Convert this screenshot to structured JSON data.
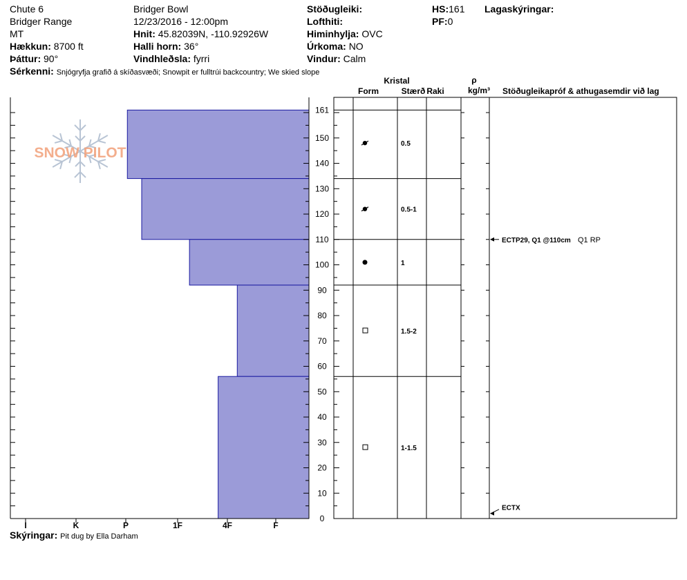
{
  "header": {
    "col1": {
      "pit_name": "Chute 6",
      "range": "Bridger Range",
      "state": "MT",
      "elevation_label": "Hækkun:",
      "elevation": "8700 ft",
      "aspect_label": "Þáttur:",
      "aspect": "90°"
    },
    "col2": {
      "area": "Bridger Bowl",
      "datetime": "12/23/2016 - 12:00pm",
      "coords_label": "Hnit:",
      "coords": "45.82039N, -110.92926W",
      "slope_label": "Halli horn:",
      "slope": "36°",
      "wind_loading_label": "Vindhleðsla:",
      "wind_loading": "fyrri"
    },
    "col3": {
      "stability_label": "Stöðugleiki:",
      "stability": "",
      "air_temp_label": "Lofthiti:",
      "air_temp": "",
      "sky_label": "Himinhylja:",
      "sky": "OVC",
      "precip_label": "Úrkoma:",
      "precip": "NO",
      "wind_label": "Vindur:",
      "wind": "Calm"
    },
    "col4": {
      "hs_label": "HS:",
      "hs": "161",
      "pf_label": "PF:",
      "pf": "0"
    },
    "layer_notes_label": "Lagaskýringar:",
    "features_label": "Sérkenni:",
    "features": "Snjógryfja grafið á skíðasvæði;  Snowpit er fulltrúi backcountry;  We skied slope"
  },
  "footer": {
    "notes_label": "Skýringar:",
    "notes": "Pit dug by Ella Darham"
  },
  "logo_text": "SNOW PILOT",
  "colors": {
    "bar_fill": "#9b9bd8",
    "bar_stroke": "#1a1aa0",
    "logo": "#f2a07a",
    "flake": "#b8c4d4"
  },
  "chart_data": {
    "type": "bar",
    "title": "",
    "hardness_labels": [
      "I",
      "K",
      "P",
      "1F",
      "4F",
      "F"
    ],
    "height_ticks": [
      0,
      10,
      20,
      30,
      40,
      50,
      60,
      70,
      80,
      90,
      100,
      110,
      120,
      130,
      140,
      150,
      161
    ],
    "height_range": [
      0,
      161
    ],
    "layers": [
      {
        "top": 161,
        "bottom": 134,
        "hardness_index": 3.8
      },
      {
        "top": 134,
        "bottom": 110,
        "hardness_index": 3.5
      },
      {
        "top": 110,
        "bottom": 92,
        "hardness_index": 2.5
      },
      {
        "top": 92,
        "bottom": 56,
        "hardness_index": 1.5
      },
      {
        "top": 56,
        "bottom": 0,
        "hardness_index": 1.9
      }
    ],
    "crystal_header": "Kristal",
    "form_header": "Form",
    "size_header": "Stærð",
    "moisture_header": "Raki",
    "density_header_symbol": "ρ",
    "density_header_unit": "kg/m³",
    "tests_header": "Stöðugleikapróf & athugasemdir við lag",
    "crystals": [
      {
        "height": 148,
        "symbol": "dot-ring",
        "size": "0.5"
      },
      {
        "height": 122,
        "symbol": "dot-ring",
        "size": "0.5-1"
      },
      {
        "height": 101,
        "symbol": "dot",
        "size": "1"
      },
      {
        "height": 74,
        "symbol": "square",
        "size": "1.5-2"
      },
      {
        "height": 28,
        "symbol": "square",
        "size": "1-1.5"
      }
    ],
    "tests": [
      {
        "height": 110,
        "label": "ECTP29, Q1 @110cm",
        "extra": "Q1 RP"
      },
      {
        "height": 2,
        "label": "ECTX",
        "extra": ""
      }
    ]
  }
}
